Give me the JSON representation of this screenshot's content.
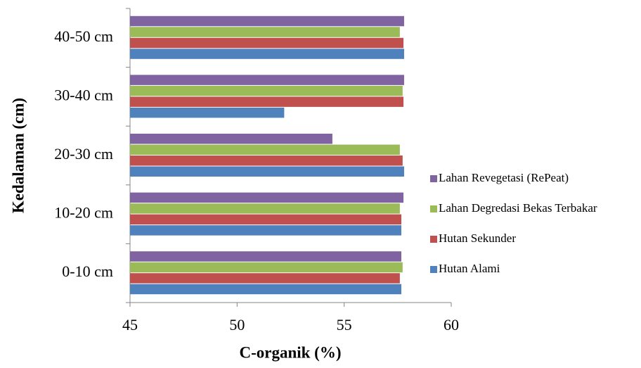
{
  "chart_data": {
    "type": "bar",
    "orientation": "horizontal",
    "xlabel": "C-organik (%)",
    "ylabel": "Kedalaman (cm)",
    "categories": [
      "0-10 cm",
      "10-20 cm",
      "20-30 cm",
      "30-40 cm",
      "40-50 cm"
    ],
    "series": [
      {
        "name": "Hutan Alami",
        "color": "#4f81bd",
        "values": [
          57.67,
          57.67,
          57.8,
          52.2,
          57.8
        ]
      },
      {
        "name": "Hutan Sekunder",
        "color": "#c0504d",
        "values": [
          57.6,
          57.67,
          57.73,
          57.77,
          57.77
        ]
      },
      {
        "name": "Lahan Degredasi Bekas Terbakar",
        "color": "#9bbb59",
        "values": [
          57.73,
          57.6,
          57.6,
          57.73,
          57.6
        ]
      },
      {
        "name": "Lahan Revegetasi (RePeat)",
        "color": "#8064a2",
        "values": [
          57.67,
          57.77,
          54.45,
          57.8,
          57.8
        ]
      }
    ],
    "xlim": [
      45,
      60
    ],
    "xticks": [
      45,
      50,
      55,
      60
    ],
    "grid": false,
    "legend": "right"
  }
}
